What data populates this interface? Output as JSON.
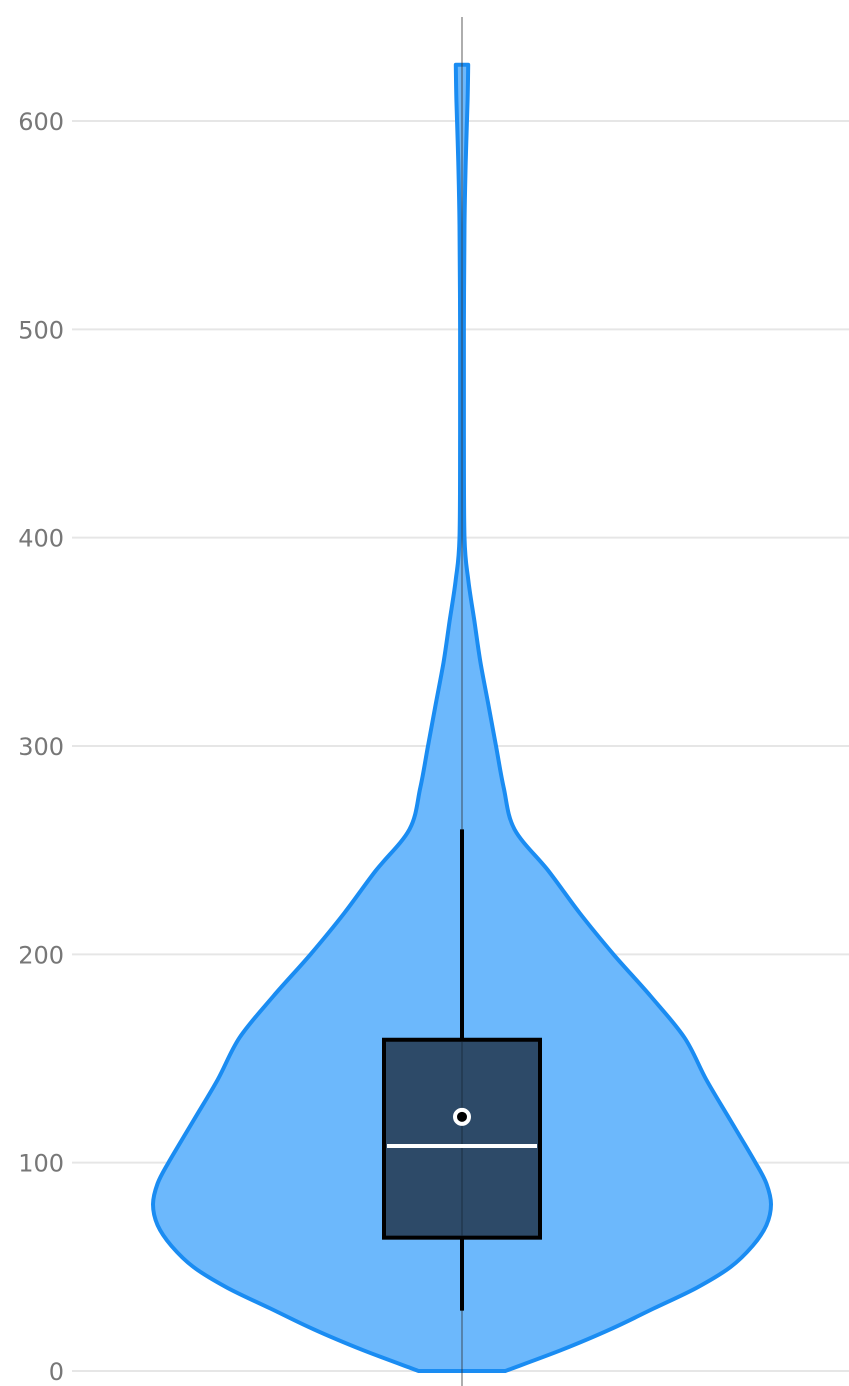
{
  "chart_data": {
    "type": "violin",
    "title": "",
    "xlabel": "",
    "ylabel": "",
    "ylim": [
      0,
      650
    ],
    "yticks": [
      0,
      100,
      200,
      300,
      400,
      500,
      600
    ],
    "grid": true,
    "colors": {
      "violin_fill": "#6cb8fc",
      "violin_stroke": "#1a8cf2",
      "box_fill": "#2d4a68",
      "box_stroke": "#000000",
      "median": "#ffffff",
      "whisker": "#000000",
      "mean_marker": "#ffffff"
    },
    "series": [
      {
        "distribution": {
          "min": 0,
          "max": 627,
          "density": [
            {
              "y": 0,
              "w": 0.14
            },
            {
              "y": 10,
              "w": 0.32
            },
            {
              "y": 20,
              "w": 0.48
            },
            {
              "y": 30,
              "w": 0.62
            },
            {
              "y": 40,
              "w": 0.76
            },
            {
              "y": 50,
              "w": 0.87
            },
            {
              "y": 60,
              "w": 0.94
            },
            {
              "y": 70,
              "w": 0.985
            },
            {
              "y": 80,
              "w": 1.0
            },
            {
              "y": 90,
              "w": 0.985
            },
            {
              "y": 100,
              "w": 0.95
            },
            {
              "y": 120,
              "w": 0.87
            },
            {
              "y": 140,
              "w": 0.79
            },
            {
              "y": 160,
              "w": 0.72
            },
            {
              "y": 180,
              "w": 0.61
            },
            {
              "y": 200,
              "w": 0.49
            },
            {
              "y": 220,
              "w": 0.38
            },
            {
              "y": 240,
              "w": 0.28
            },
            {
              "y": 260,
              "w": 0.17
            },
            {
              "y": 280,
              "w": 0.135
            },
            {
              "y": 300,
              "w": 0.11
            },
            {
              "y": 320,
              "w": 0.085
            },
            {
              "y": 340,
              "w": 0.06
            },
            {
              "y": 360,
              "w": 0.04
            },
            {
              "y": 380,
              "w": 0.02
            },
            {
              "y": 400,
              "w": 0.008
            },
            {
              "y": 450,
              "w": 0.006
            },
            {
              "y": 500,
              "w": 0.006
            },
            {
              "y": 550,
              "w": 0.008
            },
            {
              "y": 580,
              "w": 0.012
            },
            {
              "y": 610,
              "w": 0.018
            },
            {
              "y": 627,
              "w": 0.02
            }
          ]
        },
        "box": {
          "whisker_low": 29,
          "q1": 64,
          "median": 108,
          "q3": 159,
          "whisker_high": 260,
          "mean": 122
        }
      }
    ]
  }
}
